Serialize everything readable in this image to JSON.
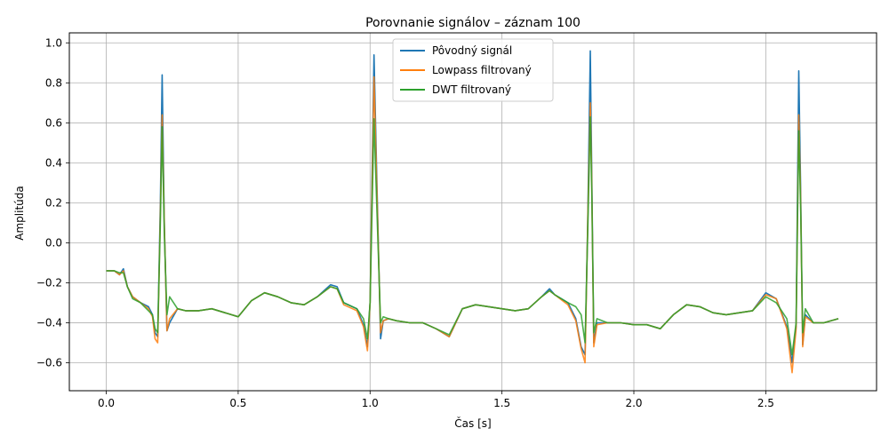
{
  "chart_data": {
    "type": "line",
    "title": "Porovnanie signálov – záznam 100",
    "xlabel": "Čas [s]",
    "ylabel": "Amplitúda",
    "xlim": [
      -0.14,
      2.92
    ],
    "ylim": [
      -0.74,
      1.05
    ],
    "xticks": [
      0.0,
      0.5,
      1.0,
      1.5,
      2.0,
      2.5
    ],
    "xtick_labels": [
      "0.0",
      "0.5",
      "1.0",
      "1.5",
      "2.0",
      "2.5"
    ],
    "yticks": [
      -0.6,
      -0.4,
      -0.2,
      0.0,
      0.2,
      0.4,
      0.6,
      0.8,
      1.0
    ],
    "ytick_labels": [
      "−0.6",
      "−0.4",
      "−0.2",
      "0.0",
      "0.2",
      "0.4",
      "0.6",
      "0.8",
      "1.0"
    ],
    "grid": true,
    "legend_position": "top-center",
    "series": [
      {
        "name": "Pôvodný signál",
        "color": "#1f77b4",
        "x": [
          0.0,
          0.03,
          0.05,
          0.065,
          0.08,
          0.1,
          0.13,
          0.16,
          0.175,
          0.185,
          0.195,
          0.205,
          0.212,
          0.22,
          0.23,
          0.24,
          0.27,
          0.3,
          0.35,
          0.4,
          0.45,
          0.5,
          0.55,
          0.6,
          0.65,
          0.7,
          0.75,
          0.8,
          0.85,
          0.875,
          0.9,
          0.95,
          0.975,
          0.99,
          1.0,
          1.015,
          1.025,
          1.04,
          1.05,
          1.07,
          1.1,
          1.15,
          1.2,
          1.25,
          1.3,
          1.35,
          1.4,
          1.45,
          1.5,
          1.55,
          1.6,
          1.65,
          1.68,
          1.7,
          1.75,
          1.78,
          1.8,
          1.815,
          1.825,
          1.835,
          1.84,
          1.848,
          1.86,
          1.9,
          1.95,
          2.0,
          2.05,
          2.1,
          2.15,
          2.2,
          2.25,
          2.3,
          2.35,
          2.4,
          2.45,
          2.5,
          2.54,
          2.58,
          2.6,
          2.615,
          2.625,
          2.632,
          2.64,
          2.65,
          2.68,
          2.72,
          2.775
        ],
        "y": [
          -0.14,
          -0.14,
          -0.16,
          -0.13,
          -0.22,
          -0.27,
          -0.3,
          -0.32,
          -0.36,
          -0.45,
          -0.47,
          0.2,
          0.84,
          0.1,
          -0.44,
          -0.4,
          -0.33,
          -0.34,
          -0.34,
          -0.33,
          -0.35,
          -0.37,
          -0.29,
          -0.25,
          -0.27,
          -0.3,
          -0.31,
          -0.27,
          -0.21,
          -0.22,
          -0.3,
          -0.33,
          -0.41,
          -0.52,
          -0.3,
          0.94,
          0.35,
          -0.48,
          -0.39,
          -0.38,
          -0.39,
          -0.4,
          -0.4,
          -0.43,
          -0.47,
          -0.33,
          -0.31,
          -0.32,
          -0.33,
          -0.34,
          -0.33,
          -0.27,
          -0.23,
          -0.26,
          -0.3,
          -0.38,
          -0.52,
          -0.56,
          0.1,
          0.96,
          0.4,
          -0.5,
          -0.4,
          -0.4,
          -0.4,
          -0.41,
          -0.41,
          -0.43,
          -0.36,
          -0.31,
          -0.32,
          -0.35,
          -0.36,
          -0.35,
          -0.34,
          -0.25,
          -0.28,
          -0.42,
          -0.6,
          -0.42,
          0.86,
          0.3,
          -0.51,
          -0.36,
          -0.4,
          -0.4,
          -0.38
        ]
      },
      {
        "name": "Lowpass filtrovaný",
        "color": "#ff7f0e",
        "x": [
          0.0,
          0.03,
          0.05,
          0.065,
          0.08,
          0.1,
          0.13,
          0.16,
          0.175,
          0.185,
          0.195,
          0.205,
          0.212,
          0.22,
          0.23,
          0.24,
          0.27,
          0.3,
          0.35,
          0.4,
          0.45,
          0.5,
          0.55,
          0.6,
          0.65,
          0.7,
          0.75,
          0.8,
          0.85,
          0.875,
          0.9,
          0.95,
          0.975,
          0.99,
          1.0,
          1.015,
          1.025,
          1.04,
          1.05,
          1.07,
          1.1,
          1.15,
          1.2,
          1.25,
          1.3,
          1.35,
          1.4,
          1.45,
          1.5,
          1.55,
          1.6,
          1.65,
          1.68,
          1.7,
          1.75,
          1.78,
          1.8,
          1.815,
          1.825,
          1.835,
          1.84,
          1.848,
          1.86,
          1.9,
          1.95,
          2.0,
          2.05,
          2.1,
          2.15,
          2.2,
          2.25,
          2.3,
          2.35,
          2.4,
          2.45,
          2.5,
          2.54,
          2.58,
          2.6,
          2.615,
          2.625,
          2.632,
          2.64,
          2.65,
          2.68,
          2.72,
          2.775
        ],
        "y": [
          -0.14,
          -0.14,
          -0.16,
          -0.14,
          -0.22,
          -0.27,
          -0.3,
          -0.33,
          -0.37,
          -0.48,
          -0.5,
          0.15,
          0.64,
          0.1,
          -0.44,
          -0.38,
          -0.33,
          -0.34,
          -0.34,
          -0.33,
          -0.35,
          -0.37,
          -0.29,
          -0.25,
          -0.27,
          -0.3,
          -0.31,
          -0.27,
          -0.22,
          -0.23,
          -0.31,
          -0.34,
          -0.42,
          -0.54,
          -0.3,
          0.83,
          0.3,
          -0.45,
          -0.39,
          -0.38,
          -0.39,
          -0.4,
          -0.4,
          -0.43,
          -0.47,
          -0.33,
          -0.31,
          -0.32,
          -0.33,
          -0.34,
          -0.33,
          -0.27,
          -0.24,
          -0.26,
          -0.31,
          -0.39,
          -0.53,
          -0.6,
          0.1,
          0.7,
          0.35,
          -0.52,
          -0.41,
          -0.4,
          -0.4,
          -0.41,
          -0.41,
          -0.43,
          -0.36,
          -0.31,
          -0.32,
          -0.35,
          -0.36,
          -0.35,
          -0.34,
          -0.26,
          -0.28,
          -0.43,
          -0.65,
          -0.43,
          0.64,
          0.25,
          -0.52,
          -0.37,
          -0.4,
          -0.4,
          -0.38
        ]
      },
      {
        "name": "DWT filtrovaný",
        "color": "#2ca02c",
        "x": [
          0.0,
          0.03,
          0.05,
          0.065,
          0.08,
          0.1,
          0.13,
          0.16,
          0.175,
          0.185,
          0.195,
          0.205,
          0.212,
          0.22,
          0.23,
          0.24,
          0.27,
          0.3,
          0.35,
          0.4,
          0.45,
          0.5,
          0.55,
          0.6,
          0.65,
          0.7,
          0.75,
          0.8,
          0.85,
          0.875,
          0.9,
          0.95,
          0.975,
          0.99,
          1.0,
          1.015,
          1.025,
          1.04,
          1.05,
          1.07,
          1.1,
          1.15,
          1.2,
          1.25,
          1.3,
          1.35,
          1.4,
          1.45,
          1.5,
          1.55,
          1.6,
          1.65,
          1.68,
          1.7,
          1.75,
          1.78,
          1.8,
          1.815,
          1.825,
          1.835,
          1.84,
          1.848,
          1.86,
          1.9,
          1.95,
          2.0,
          2.05,
          2.1,
          2.15,
          2.2,
          2.25,
          2.3,
          2.35,
          2.4,
          2.45,
          2.5,
          2.54,
          2.58,
          2.6,
          2.615,
          2.625,
          2.632,
          2.64,
          2.65,
          2.68,
          2.72,
          2.775
        ],
        "y": [
          -0.14,
          -0.14,
          -0.15,
          -0.15,
          -0.22,
          -0.28,
          -0.3,
          -0.34,
          -0.36,
          -0.43,
          -0.45,
          0.1,
          0.58,
          0.05,
          -0.36,
          -0.27,
          -0.33,
          -0.34,
          -0.34,
          -0.33,
          -0.35,
          -0.37,
          -0.29,
          -0.25,
          -0.27,
          -0.3,
          -0.31,
          -0.27,
          -0.22,
          -0.23,
          -0.3,
          -0.33,
          -0.38,
          -0.48,
          -0.3,
          0.62,
          0.2,
          -0.4,
          -0.37,
          -0.38,
          -0.39,
          -0.4,
          -0.4,
          -0.43,
          -0.46,
          -0.33,
          -0.31,
          -0.32,
          -0.33,
          -0.34,
          -0.33,
          -0.27,
          -0.24,
          -0.26,
          -0.3,
          -0.32,
          -0.36,
          -0.5,
          0.05,
          0.63,
          0.3,
          -0.45,
          -0.38,
          -0.4,
          -0.4,
          -0.41,
          -0.41,
          -0.43,
          -0.36,
          -0.31,
          -0.32,
          -0.35,
          -0.36,
          -0.35,
          -0.34,
          -0.27,
          -0.3,
          -0.38,
          -0.56,
          -0.4,
          0.56,
          0.2,
          -0.45,
          -0.33,
          -0.4,
          -0.4,
          -0.38
        ]
      }
    ]
  }
}
